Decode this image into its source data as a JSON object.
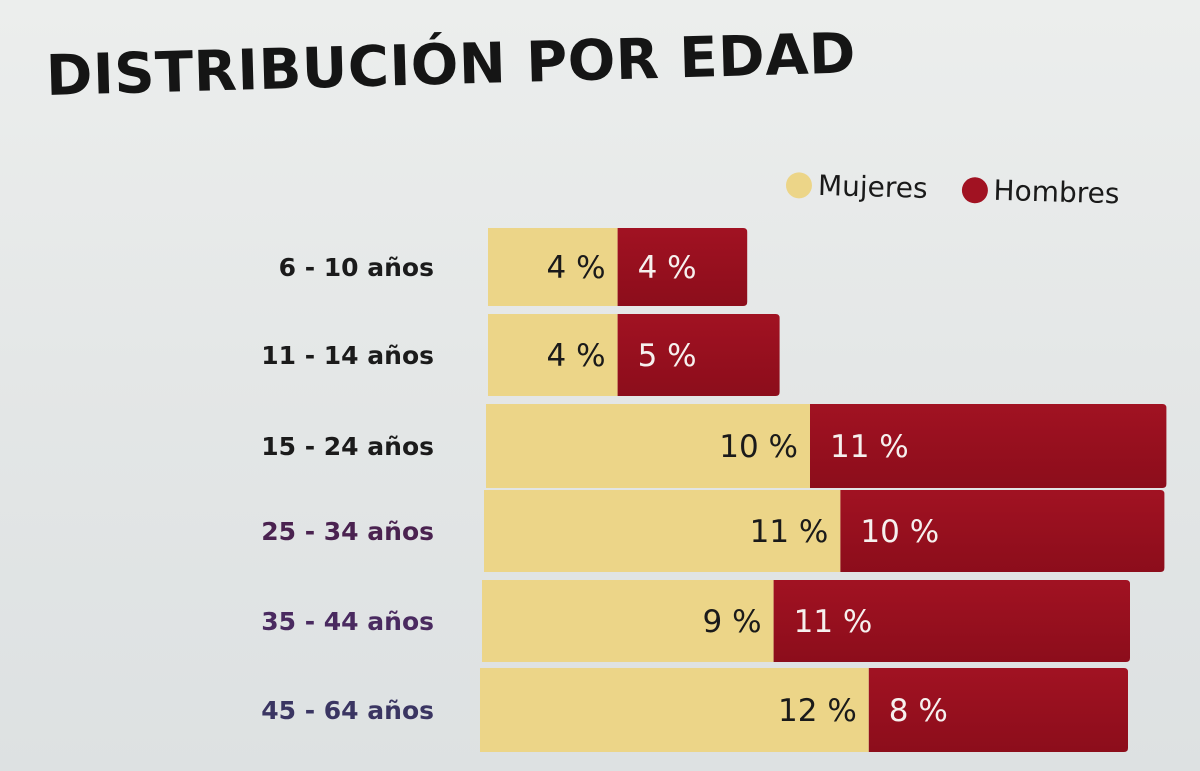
{
  "chart_data": {
    "type": "bar",
    "orientation": "horizontal",
    "stacked": true,
    "title": "DISTRIBUCIÓN POR EDAD",
    "categories": [
      "6 - 10 años",
      "11 - 14 años",
      "15 - 24 años",
      "25 - 34 años",
      "35 - 44 años",
      "45 - 64 años"
    ],
    "series": [
      {
        "name": "Mujeres",
        "color": "#ecd588",
        "values": [
          4,
          4,
          10,
          11,
          9,
          12
        ],
        "labels": [
          "4 %",
          "4 %",
          "10 %",
          "11 %",
          "9 %",
          "12 %"
        ]
      },
      {
        "name": "Hombres",
        "color": "#a11222",
        "values": [
          4,
          5,
          11,
          10,
          11,
          8
        ],
        "labels": [
          "4 %",
          "5 %",
          "11 %",
          "10 %",
          "11 %",
          "8 %"
        ]
      }
    ],
    "category_label_colors": [
      "#1b1b1b",
      "#1b1b1b",
      "#1b1b1b",
      "#4a2250",
      "#4a2a60",
      "#3a3562"
    ],
    "xlabel": "",
    "ylabel": "",
    "legend": "top-right",
    "grid": false
  }
}
